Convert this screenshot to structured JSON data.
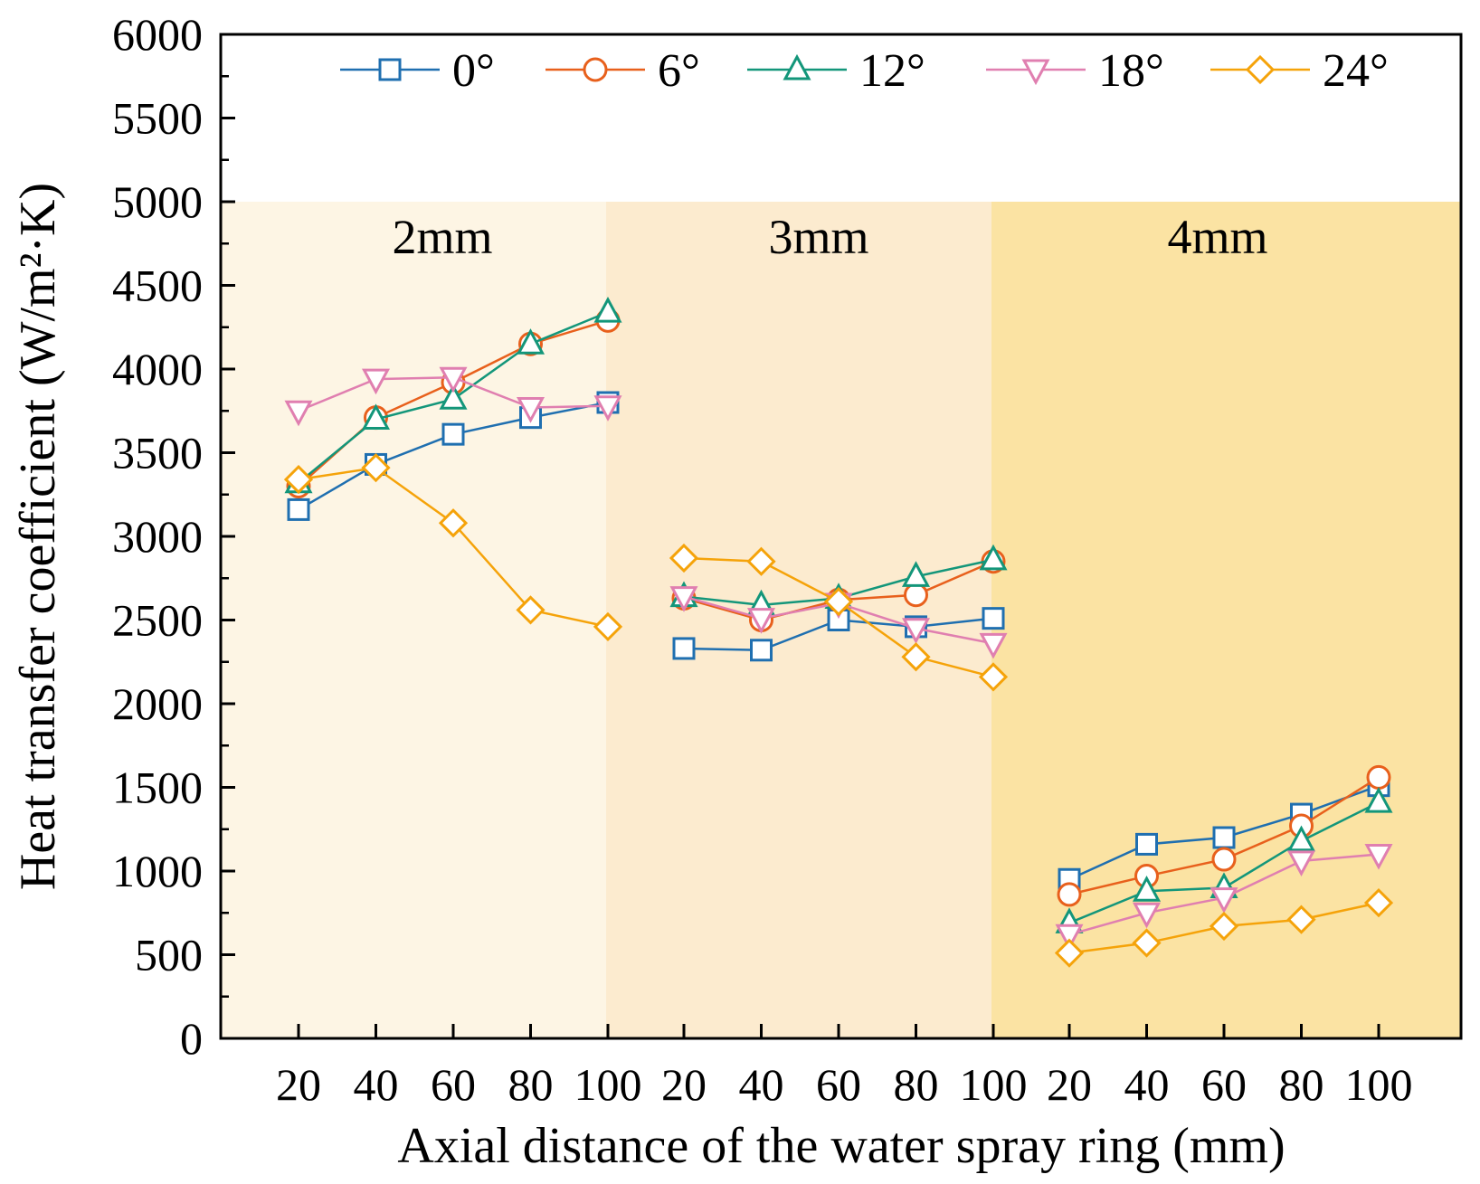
{
  "chart_data": {
    "type": "line",
    "title": "",
    "xlabel": "Axial distance of the water spray ring (mm)",
    "ylabel": "Heat transfer coefficient (W/m²·K)",
    "ylim": [
      0,
      6000
    ],
    "yticks": [
      0,
      500,
      1000,
      1500,
      2000,
      2500,
      3000,
      3500,
      4000,
      4500,
      5000,
      5500,
      6000
    ],
    "ytick_labels": [
      "0",
      "500",
      "1000",
      "1500",
      "2000",
      "2500",
      "3000",
      "3500",
      "4000",
      "4500",
      "5000",
      "5500",
      "6000"
    ],
    "categories": [
      "20",
      "40",
      "60",
      "80",
      "100"
    ],
    "grid": false,
    "legend_position": "top",
    "groups": [
      {
        "label": "2mm",
        "color": "#fdf5e4",
        "series": [
          {
            "name": "0°",
            "values": [
              3160,
              3430,
              3610,
              3710,
              3800
            ]
          },
          {
            "name": "6°",
            "values": [
              3300,
              3710,
              3920,
              4150,
              4290
            ]
          },
          {
            "name": "12°",
            "values": [
              3320,
              3700,
              3820,
              4150,
              4340
            ]
          },
          {
            "name": "18°",
            "values": [
              3750,
              3940,
              3950,
              3770,
              3780
            ]
          },
          {
            "name": "24°",
            "values": [
              3340,
              3410,
              3080,
              2560,
              2460
            ]
          }
        ]
      },
      {
        "label": "3mm",
        "color": "#fcebcf",
        "series": [
          {
            "name": "0°",
            "values": [
              2330,
              2320,
              2500,
              2460,
              2510
            ]
          },
          {
            "name": "6°",
            "values": [
              2630,
              2500,
              2620,
              2650,
              2850
            ]
          },
          {
            "name": "12°",
            "values": [
              2640,
              2590,
              2630,
              2760,
              2860
            ]
          },
          {
            "name": "18°",
            "values": [
              2640,
              2510,
              2600,
              2450,
              2360
            ]
          },
          {
            "name": "24°",
            "values": [
              2870,
              2850,
              2610,
              2280,
              2160
            ]
          }
        ]
      },
      {
        "label": "4mm",
        "color": "#fbe3a3",
        "series": [
          {
            "name": "0°",
            "values": [
              950,
              1160,
              1200,
              1340,
              1510
            ]
          },
          {
            "name": "6°",
            "values": [
              860,
              970,
              1070,
              1270,
              1560
            ]
          },
          {
            "name": "12°",
            "values": [
              690,
              880,
              900,
              1180,
              1410
            ]
          },
          {
            "name": "18°",
            "values": [
              620,
              750,
              840,
              1060,
              1100
            ]
          },
          {
            "name": "24°",
            "values": [
              510,
              570,
              670,
              710,
              810
            ]
          }
        ]
      }
    ],
    "legend": [
      {
        "name": "0°",
        "color": "#1f6fb0",
        "marker": "square"
      },
      {
        "name": "6°",
        "color": "#e8601c",
        "marker": "circle"
      },
      {
        "name": "12°",
        "color": "#13967a",
        "marker": "triangle-up"
      },
      {
        "name": "18°",
        "color": "#e07fb0",
        "marker": "triangle-down"
      },
      {
        "name": "24°",
        "color": "#f5a30a",
        "marker": "diamond"
      }
    ]
  }
}
